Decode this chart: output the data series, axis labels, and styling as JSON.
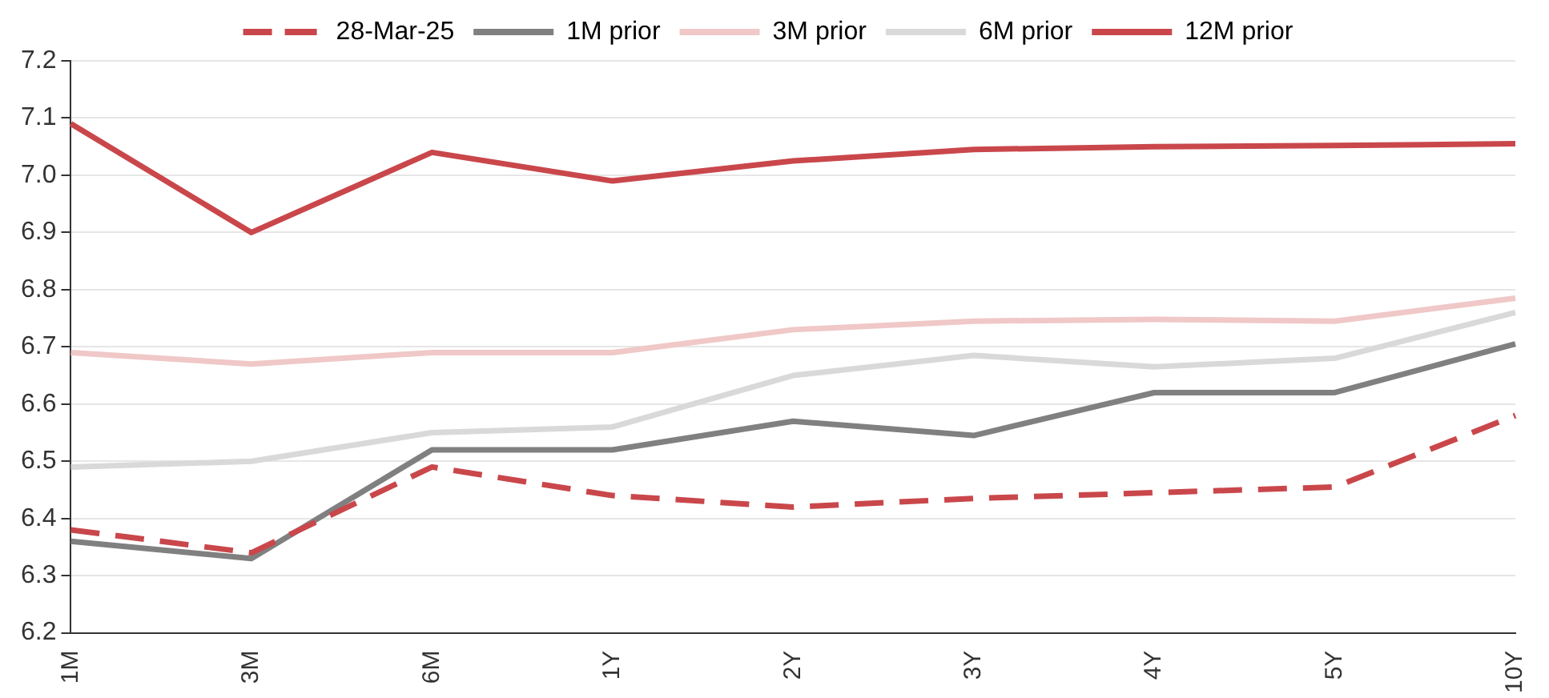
{
  "chart_data": {
    "type": "line",
    "categories": [
      "1M",
      "3M",
      "6M",
      "1Y",
      "2Y",
      "3Y",
      "4Y",
      "5Y",
      "10Y"
    ],
    "series": [
      {
        "name": "28-Mar-25",
        "color": "#c9474b",
        "line_style": "dashed",
        "values": [
          6.38,
          6.34,
          6.49,
          6.44,
          6.42,
          6.435,
          6.445,
          6.455,
          6.58
        ]
      },
      {
        "name": "1M prior",
        "color": "#808080",
        "values": [
          6.36,
          6.33,
          6.52,
          6.52,
          6.57,
          6.545,
          6.62,
          6.62,
          6.705
        ]
      },
      {
        "name": "3M prior",
        "color": "#f0c8c8",
        "values": [
          6.69,
          6.67,
          6.69,
          6.69,
          6.73,
          6.745,
          6.748,
          6.745,
          6.785
        ]
      },
      {
        "name": "6M prior",
        "color": "#d9d9d9",
        "values": [
          6.49,
          6.5,
          6.55,
          6.56,
          6.65,
          6.685,
          6.665,
          6.68,
          6.76
        ]
      },
      {
        "name": "12M prior",
        "color": "#c9474b",
        "values": [
          7.09,
          6.9,
          7.04,
          6.99,
          7.025,
          7.045,
          7.05,
          7.052,
          7.055
        ]
      }
    ],
    "ylim": [
      6.2,
      7.2
    ],
    "yticks": [
      6.2,
      6.3,
      6.4,
      6.5,
      6.6,
      6.7,
      6.8,
      6.9,
      {
        "value": 7,
        "label": "7.0"
      },
      7.1,
      7.2
    ],
    "grid": "y",
    "legend": "top",
    "marker": "none",
    "line_style": "solid"
  }
}
